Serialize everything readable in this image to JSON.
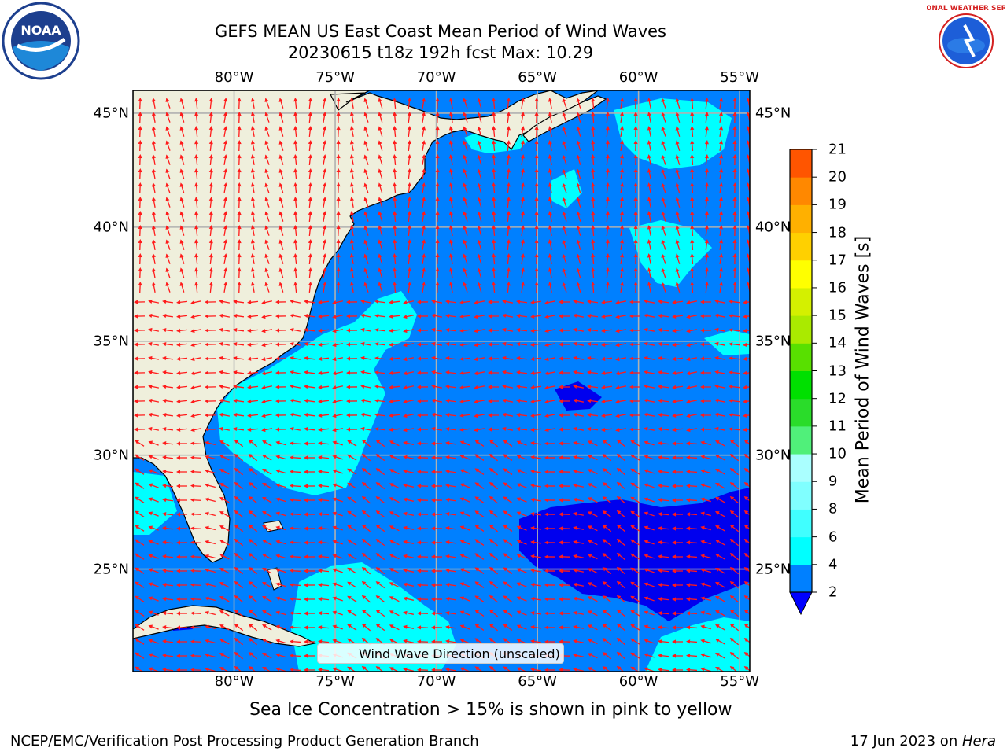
{
  "header": {
    "title_line1": "GEFS MEAN US East Coast Mean Period of Wind Waves",
    "title_line2": "20230615 t18z 192h fcst   Max: 10.29"
  },
  "logos": {
    "left": {
      "icon": "noaa-logo-icon",
      "text": "NOAA"
    },
    "right": {
      "icon": "nws-logo-icon",
      "text": "NATIONAL WEATHER SERVICE"
    }
  },
  "map": {
    "projection": "cylindrical",
    "lon_range": [
      -85,
      -54.5
    ],
    "lat_range": [
      20.5,
      46
    ],
    "lon_ticks": [
      {
        "value": -80,
        "label": "80°W"
      },
      {
        "value": -75,
        "label": "75°W"
      },
      {
        "value": -70,
        "label": "70°W"
      },
      {
        "value": -65,
        "label": "65°W"
      },
      {
        "value": -60,
        "label": "60°W"
      },
      {
        "value": -55,
        "label": "55°W"
      }
    ],
    "lat_ticks": [
      {
        "value": 45,
        "label": "45°N"
      },
      {
        "value": 40,
        "label": "40°N"
      },
      {
        "value": 35,
        "label": "35°N"
      },
      {
        "value": 30,
        "label": "30°N"
      },
      {
        "value": 25,
        "label": "25°N"
      }
    ],
    "gridlines": true,
    "land_color": "#efefdc",
    "ocean_base_color": "#0080ff",
    "arrow_color": "#ff1a1a"
  },
  "colorbar": {
    "title": "Mean Period of Wind Waves [s]",
    "ticks": [
      "2",
      "4",
      "6",
      "8",
      "9",
      "10",
      "11",
      "12",
      "13",
      "14",
      "15",
      "16",
      "17",
      "18",
      "19",
      "20",
      "21"
    ],
    "under_color": "#0000ff",
    "colors": [
      "#0080ff",
      "#00ffff",
      "#40ffff",
      "#80ffff",
      "#aaffff",
      "#50f07a",
      "#2adc2a",
      "#00e000",
      "#58e000",
      "#aaea00",
      "#d4f000",
      "#ffff00",
      "#ffd000",
      "#ffb000",
      "#ff8800",
      "#ff5500",
      "#ff2a00",
      "#ff0000"
    ]
  },
  "legend": {
    "label": "Wind Wave Direction (unscaled)"
  },
  "subtitle": "Sea Ice Concentration > 15% is shown in pink to yellow",
  "footer": {
    "left": "NCEP/EMC/Verification Post Processing Product Generation Branch",
    "right_date": "17 Jun 2023 on ",
    "right_host": "Hera"
  }
}
